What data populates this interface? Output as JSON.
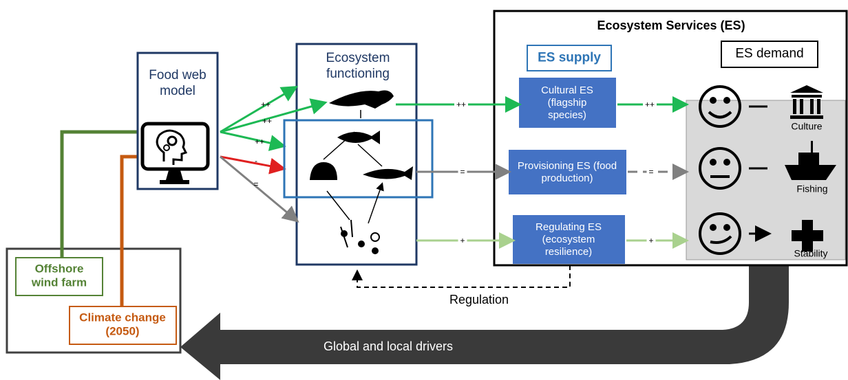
{
  "model": {
    "title": "Food web model"
  },
  "drivers": [
    "Offshore wind farm",
    "Climate change (2050)"
  ],
  "functioning": {
    "title": "Ecosystem functioning"
  },
  "services": {
    "title": "Ecosystem Services (ES)",
    "supply_title": "ES supply",
    "demand_title": "ES demand",
    "supply": [
      "Cultural ES (flagship species)",
      "Provisioning ES (food production)",
      "Regulating ES (ecosystem resilience)"
    ],
    "demand": [
      "Culture",
      "Fishing",
      "Stability"
    ]
  },
  "effects": {
    "model_to_functioning": [
      "++",
      "++",
      "++",
      "-",
      "="
    ],
    "functioning_to_supply": [
      "++",
      "=",
      "+"
    ],
    "supply_to_demand": [
      "++",
      "=",
      "+"
    ]
  },
  "regulation": "Regulation",
  "feedback": "Global and local drivers"
}
